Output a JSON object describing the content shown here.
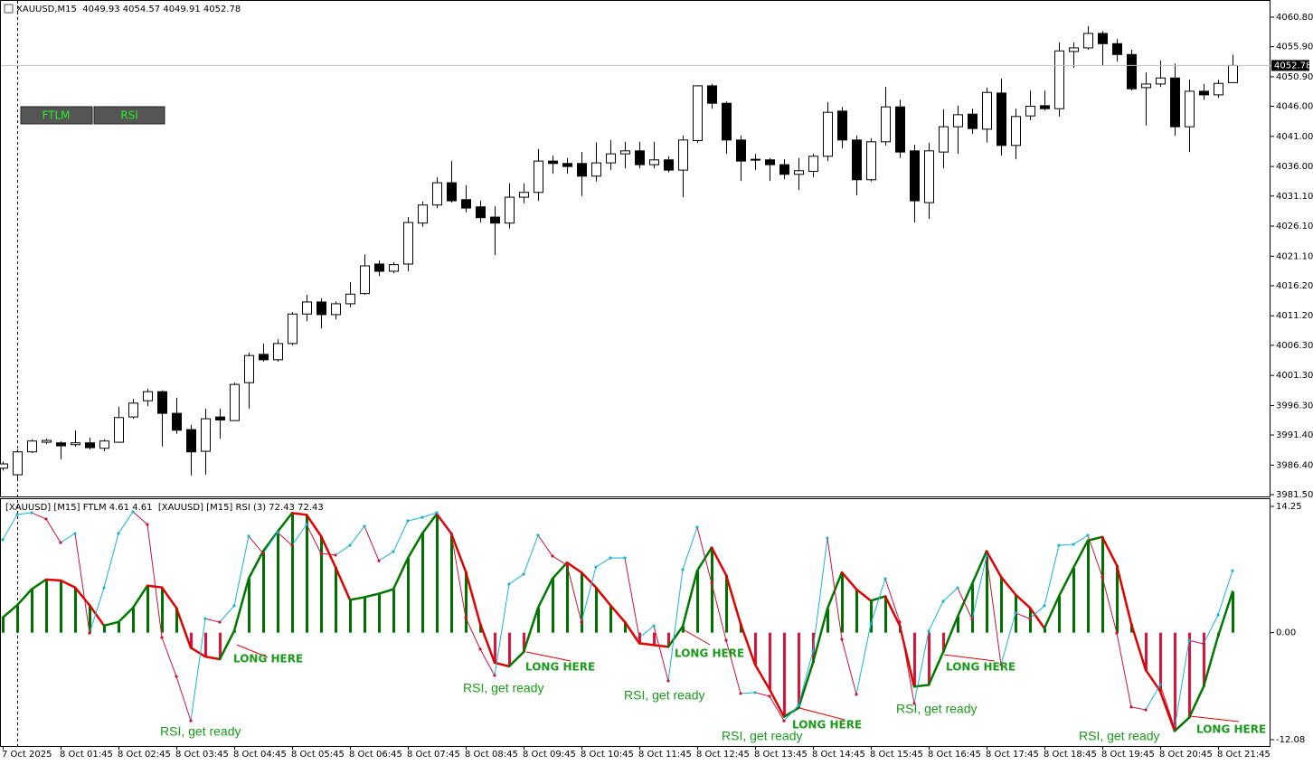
{
  "chart_data": [
    {
      "type": "candlestick",
      "title": "XAUUSD,M15  4049.93 4054.57 4049.91 4052.78",
      "open": [
        3985.9,
        3984.8,
        3988.6,
        3990.2,
        3990.1,
        3989.8,
        3990.1,
        3989.2,
        3990.2,
        3994.4,
        3997.1,
        3998.6,
        3995.0,
        3992.3,
        3988.7,
        3994.4,
        3993.8,
        4000.1,
        4004.8,
        4003.9,
        4006.6,
        4011.5,
        4013.5,
        4011.4,
        4013.2,
        4014.9,
        4019.8,
        4018.6,
        4019.8,
        4026.6,
        4029.6,
        4033.3,
        4030.5,
        4029.3,
        4027.6,
        4026.6,
        4030.9,
        4031.7,
        4036.9,
        4036.5,
        4036.5,
        4034.4,
        4036.6,
        4038.1,
        4038.6,
        4036.3,
        4037.1,
        4035.4,
        4040.3,
        4049.4,
        4046.5,
        4040.4,
        4037.2,
        4037.1,
        4036.3,
        4034.7,
        4035.2,
        4037.7,
        4045.2,
        4040.4,
        4033.8,
        4040.1,
        4045.9,
        4038.6,
        4030.0,
        4038.4,
        4042.6,
        4044.7,
        4042.2,
        4048.2,
        4039.5,
        4044.4,
        4046.1,
        4045.6,
        4055.1,
        4055.7,
        4058.1,
        4056.4,
        4054.6,
        4049.1,
        4049.7,
        4050.7,
        4042.6,
        4048.5,
        4047.9,
        4049.93
      ],
      "high": [
        3987.0,
        3989.0,
        3990.7,
        3990.8,
        3990.4,
        3992.2,
        3991.0,
        3990.7,
        3996.1,
        3997.4,
        3999.1,
        3998.8,
        3997.6,
        3993.1,
        3995.8,
        3995.8,
        4000.1,
        4005.1,
        4006.6,
        4007.3,
        4011.8,
        4014.7,
        4014.1,
        4013.6,
        4016.8,
        4021.4,
        4020.4,
        4020.1,
        4027.6,
        4030.2,
        4034.2,
        4036.9,
        4032.9,
        4030.3,
        4029.4,
        4033.2,
        4033.2,
        4038.9,
        4037.8,
        4037.4,
        4038.4,
        4040.0,
        4040.4,
        4040.1,
        4040.1,
        4040.1,
        4037.7,
        4041.1,
        4049.5,
        4049.7,
        4046.8,
        4041.1,
        4038.1,
        4037.4,
        4037.2,
        4037.4,
        4038.1,
        4046.7,
        4045.9,
        4041.1,
        4040.7,
        4049.2,
        4047.1,
        4039.6,
        4039.9,
        4045.5,
        4046.1,
        4045.6,
        4049.1,
        4050.6,
        4045.6,
        4048.6,
        4048.6,
        4056.6,
        4056.6,
        4059.3,
        4058.5,
        4057.2,
        4055.4,
        4051.6,
        4053.6,
        4053.1,
        4050.4,
        4049.7,
        4050.4,
        4054.57
      ],
      "low": [
        3985.5,
        3983.8,
        3988.4,
        3989.9,
        3987.4,
        3989.5,
        3989.0,
        3988.7,
        3990.1,
        3994.1,
        3996.2,
        3989.5,
        3991.6,
        3984.7,
        3984.8,
        3990.8,
        3993.7,
        3995.8,
        4003.6,
        4003.6,
        4006.3,
        4010.3,
        4009.1,
        4010.6,
        4012.6,
        4014.7,
        4017.8,
        4018.3,
        4018.6,
        4026.0,
        4029.1,
        4030.0,
        4028.4,
        4026.7,
        4021.3,
        4025.7,
        4029.9,
        4030.3,
        4034.8,
        4034.8,
        4031.1,
        4033.5,
        4035.4,
        4035.7,
        4035.7,
        4035.7,
        4035.0,
        4030.9,
        4039.9,
        4045.6,
        4038.1,
        4033.6,
        4035.4,
        4033.6,
        4033.9,
        4032.1,
        4034.2,
        4036.9,
        4039.0,
        4031.2,
        4033.5,
        4039.5,
        4037.4,
        4026.7,
        4027.3,
        4035.7,
        4038.1,
        4041.4,
        4040.0,
        4037.8,
        4037.2,
        4043.7,
        4045.3,
        4044.3,
        4052.4,
        4055.4,
        4052.7,
        4053.4,
        4048.6,
        4042.8,
        4049.2,
        4041.1,
        4038.4,
        4047.1,
        4047.4,
        4049.91
      ],
      "close": [
        3986.6,
        3988.6,
        3990.4,
        3990.5,
        3989.6,
        3990.1,
        3989.3,
        3990.4,
        3994.3,
        3996.7,
        3998.6,
        3995.0,
        3992.2,
        3988.6,
        3994.1,
        3993.9,
        3999.8,
        4004.6,
        4003.9,
        4006.6,
        4011.5,
        4013.5,
        4011.4,
        4013.2,
        4014.8,
        4019.5,
        4018.6,
        4019.7,
        4026.7,
        4029.6,
        4033.3,
        4030.3,
        4029.1,
        4027.5,
        4026.6,
        4030.9,
        4031.7,
        4036.9,
        4036.5,
        4036.0,
        4034.4,
        4036.6,
        4038.1,
        4038.6,
        4036.3,
        4037.1,
        4035.4,
        4040.4,
        4049.4,
        4046.5,
        4040.4,
        4036.9,
        4037.1,
        4036.3,
        4034.7,
        4035.3,
        4037.7,
        4045.0,
        4040.4,
        4033.8,
        4040.1,
        4045.9,
        4038.4,
        4030.3,
        4038.6,
        4042.6,
        4044.6,
        4042.3,
        4048.3,
        4039.5,
        4044.3,
        4046.0,
        4045.6,
        4055.2,
        4055.7,
        4058.1,
        4056.4,
        4054.6,
        4048.9,
        4049.7,
        4050.7,
        4042.6,
        4048.5,
        4047.9,
        4049.8,
        4052.78
      ],
      "up_color": "#ffffff",
      "down_color": "#000000",
      "last_price": 4052.78,
      "ylim": [
        3981.5,
        4060.8
      ],
      "yticks": [
        {
          "value": 4060.8,
          "label": "4060.80"
        },
        {
          "value": 4055.9,
          "label": "4055.90"
        },
        {
          "value": 4050.9,
          "label": "4050.90"
        },
        {
          "value": 4046,
          "label": "4046.00"
        },
        {
          "value": 4041,
          "label": "4041.00"
        },
        {
          "value": 4036,
          "label": "4036.00"
        },
        {
          "value": 4031.1,
          "label": "4031.10"
        },
        {
          "value": 4026.1,
          "label": "4026.10"
        },
        {
          "value": 4021.1,
          "label": "4021.10"
        },
        {
          "value": 4016.2,
          "label": "4016.20"
        },
        {
          "value": 4011.2,
          "label": "4011.20"
        },
        {
          "value": 4006.3,
          "label": "4006.30"
        },
        {
          "value": 4001.3,
          "label": "4001.30"
        },
        {
          "value": 3996.3,
          "label": "3996.30"
        },
        {
          "value": 3991.4,
          "label": "3991.40"
        },
        {
          "value": 3986.4,
          "label": "3986.40"
        },
        {
          "value": 3981.5,
          "label": "3981.50"
        }
      ]
    },
    {
      "type": "oscillator",
      "title": "[XAUUSD] [M15] FTLM 4.61 4.61  [XAUUSD] [M15] RSI (3) 72.43 72.43",
      "categories": [
        "7 Oct 2025",
        null,
        null,
        null,
        "8 Oct 01:45",
        null,
        null,
        null,
        "8 Oct 02:45",
        null,
        null,
        null,
        "8 Oct 03:45",
        null,
        null,
        null,
        "8 Oct 04:45",
        null,
        null,
        null,
        "8 Oct 05:45",
        null,
        null,
        null,
        "8 Oct 06:45",
        null,
        null,
        null,
        "8 Oct 07:45",
        null,
        null,
        null,
        "8 Oct 08:45",
        null,
        null,
        null,
        "8 Oct 09:45",
        null,
        null,
        null,
        "8 Oct 10:45",
        null,
        null,
        null,
        "8 Oct 11:45",
        null,
        null,
        null,
        "8 Oct 12:45",
        null,
        null,
        null,
        "8 Oct 13:45",
        null,
        null,
        null,
        "8 Oct 14:45",
        null,
        null,
        null,
        "8 Oct 15:45",
        null,
        null,
        null,
        "8 Oct 16:45",
        null,
        null,
        null,
        "8 Oct 17:45",
        null,
        null,
        null,
        "8 Oct 18:45",
        null,
        null,
        null,
        "8 Oct 19:45",
        null,
        null,
        null,
        "8 Oct 20:45",
        null,
        null,
        null,
        "8 Oct 21:45",
        null
      ],
      "series": [
        {
          "name": "FTLM",
          "color": "#007000",
          "down_color": "#dc143c",
          "line_up_color": "#007800",
          "line_down_color": "#e00000",
          "values": [
            1.7,
            3.1,
            4.9,
            6.0,
            5.9,
            5.1,
            3.1,
            0.8,
            1.2,
            2.8,
            5.3,
            5.1,
            2.8,
            -1.7,
            -2.7,
            -3.0,
            0.2,
            6.1,
            9.2,
            11.4,
            13.5,
            13.3,
            10.9,
            7.4,
            3.7,
            4.0,
            4.4,
            4.9,
            8.4,
            11.2,
            13.4,
            11.2,
            6.9,
            1.0,
            -3.4,
            -3.8,
            -2.2,
            2.8,
            6.1,
            7.9,
            6.8,
            5.1,
            3.1,
            1.2,
            -1.2,
            -1.4,
            -1.6,
            0.7,
            7.0,
            9.6,
            6.5,
            1.0,
            -3.6,
            -6.4,
            -9.5,
            -8.5,
            -3.4,
            2.7,
            6.8,
            4.9,
            3.6,
            4.1,
            0.8,
            -6.1,
            -5.9,
            -2.2,
            1.8,
            5.5,
            9.2,
            6.3,
            4.3,
            2.8,
            0.5,
            4.1,
            7.3,
            10.4,
            10.8,
            7.6,
            1.0,
            -4.2,
            -6.6,
            -11.1,
            -9.6,
            -6.1,
            -0.4,
            4.61
          ]
        },
        {
          "name": "RSI",
          "color": "#1ab0d8",
          "down_color": "#c8143c",
          "axis": "y2",
          "values": [
            85.7,
            96.5,
            97.3,
            94.6,
            84.5,
            88.4,
            45.7,
            65.1,
            88.4,
            97.7,
            92.2,
            43.8,
            27.1,
            8.1,
            51.9,
            50.4,
            57.4,
            87.2,
            79.8,
            88.8,
            83.3,
            92.2,
            79.8,
            79.1,
            83.3,
            91.5,
            76.7,
            80.6,
            93.8,
            95.3,
            97.3,
            88.4,
            52.3,
            38.8,
            27.5,
            66.7,
            70.9,
            87.6,
            78.7,
            74.8,
            50.4,
            74.0,
            77.9,
            77.9,
            43.8,
            48.8,
            25.2,
            72.9,
            91.1,
            67.1,
            42.6,
            19.8,
            20.2,
            18.6,
            8.1,
            14.7,
            38.0,
            86.4,
            43.0,
            19.4,
            49.6,
            69.0,
            50.4,
            15.5,
            46.5,
            59.3,
            65.1,
            51.6,
            78.7,
            32.2,
            54.3,
            51.9,
            57.4,
            83.3,
            83.7,
            87.6,
            69.8,
            45.7,
            14.0,
            12.8,
            23.6,
            5.0,
            42.6,
            41.1,
            53.5,
            72.43
          ]
        }
      ],
      "ylim": [
        -12.08,
        14.25
      ],
      "yticks": [
        14.25,
        {
          "value": 0,
          "label": "0.00"
        },
        -12.08
      ],
      "y2lim": [
        0,
        100
      ],
      "annotations": [
        "LONG HERE",
        "LONG HERE",
        "LONG HERE",
        "LONG HERE",
        "LONG HERE",
        "LONG HERE",
        "RSI, get ready",
        "RSI, get ready",
        "RSI, get ready",
        "RSI, get ready",
        "RSI, get ready",
        "RSI, get ready"
      ]
    }
  ]
}
